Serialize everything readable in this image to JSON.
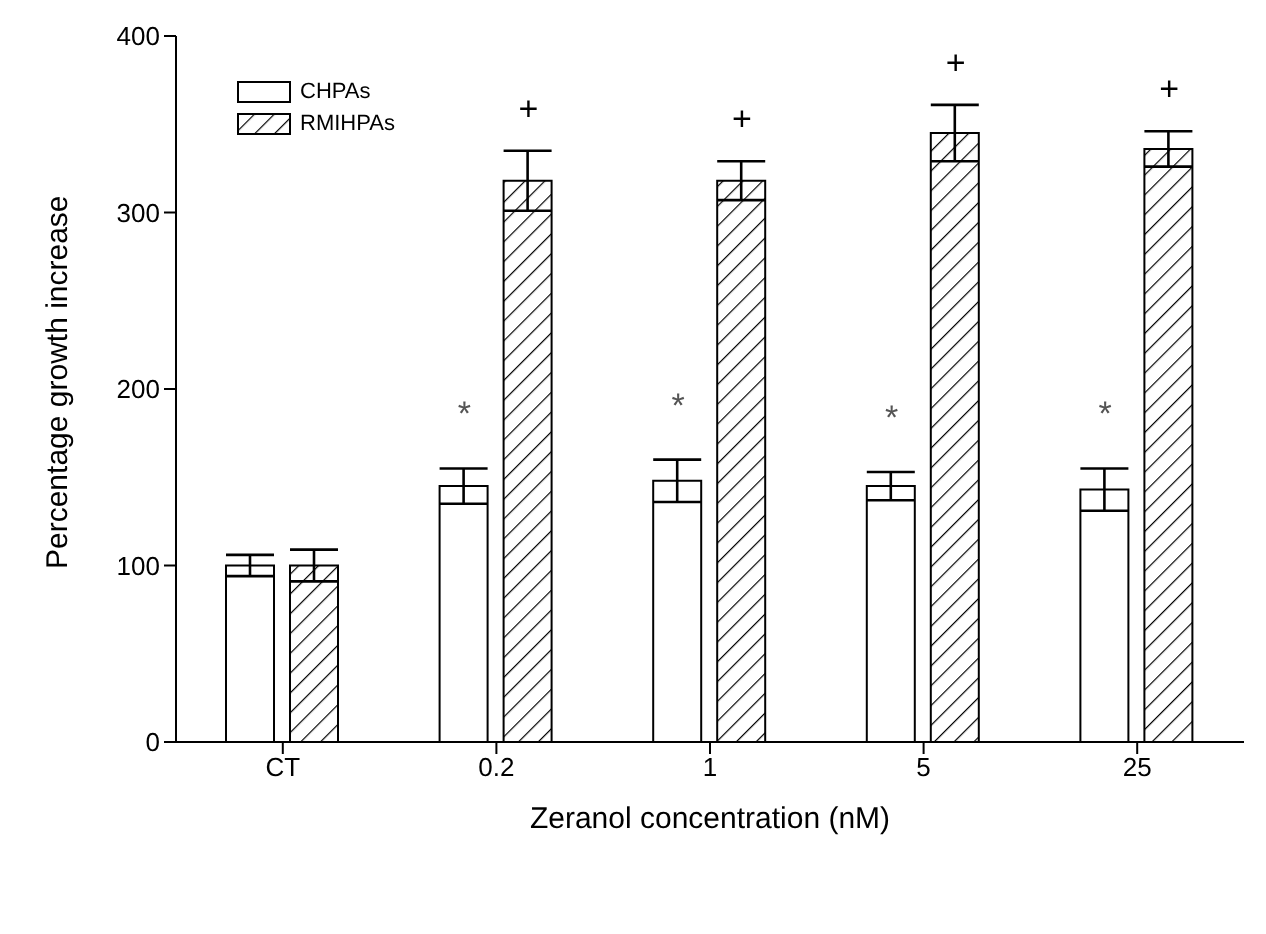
{
  "chart_data": {
    "type": "bar",
    "xlabel": "Zeranol concentration (nM)",
    "ylabel": "Percentage growth increase",
    "categories": [
      "CT",
      "0.2",
      "1",
      "5",
      "25"
    ],
    "series": [
      {
        "name": "CHPAs",
        "color": "#ffffff",
        "values": [
          100,
          145,
          148,
          145,
          143
        ],
        "errors": [
          6,
          10,
          12,
          8,
          12
        ]
      },
      {
        "name": "RMIHPAs",
        "color": "#000000",
        "values": [
          100,
          318,
          318,
          345,
          336
        ],
        "errors": [
          9,
          17,
          11,
          16,
          10
        ]
      }
    ],
    "ylim": [
      0,
      400
    ],
    "yticks": [
      0,
      100,
      200,
      300,
      400
    ],
    "grid": false,
    "legend": "top left",
    "annotations": [
      {
        "text": "*",
        "x": "0.2",
        "y": 155
      },
      {
        "text": "*",
        "x": "1",
        "y": 160
      },
      {
        "text": "*",
        "x": "5",
        "y": 153
      },
      {
        "text": "*",
        "x": "25",
        "y": 155
      },
      {
        "text": "+",
        "x": "0.2",
        "y": 335
      },
      {
        "text": "+",
        "x": "1",
        "y": 329
      },
      {
        "text": "+",
        "x": "5",
        "y": 361
      },
      {
        "text": "+",
        "x": "25",
        "y": 346
      }
    ]
  }
}
